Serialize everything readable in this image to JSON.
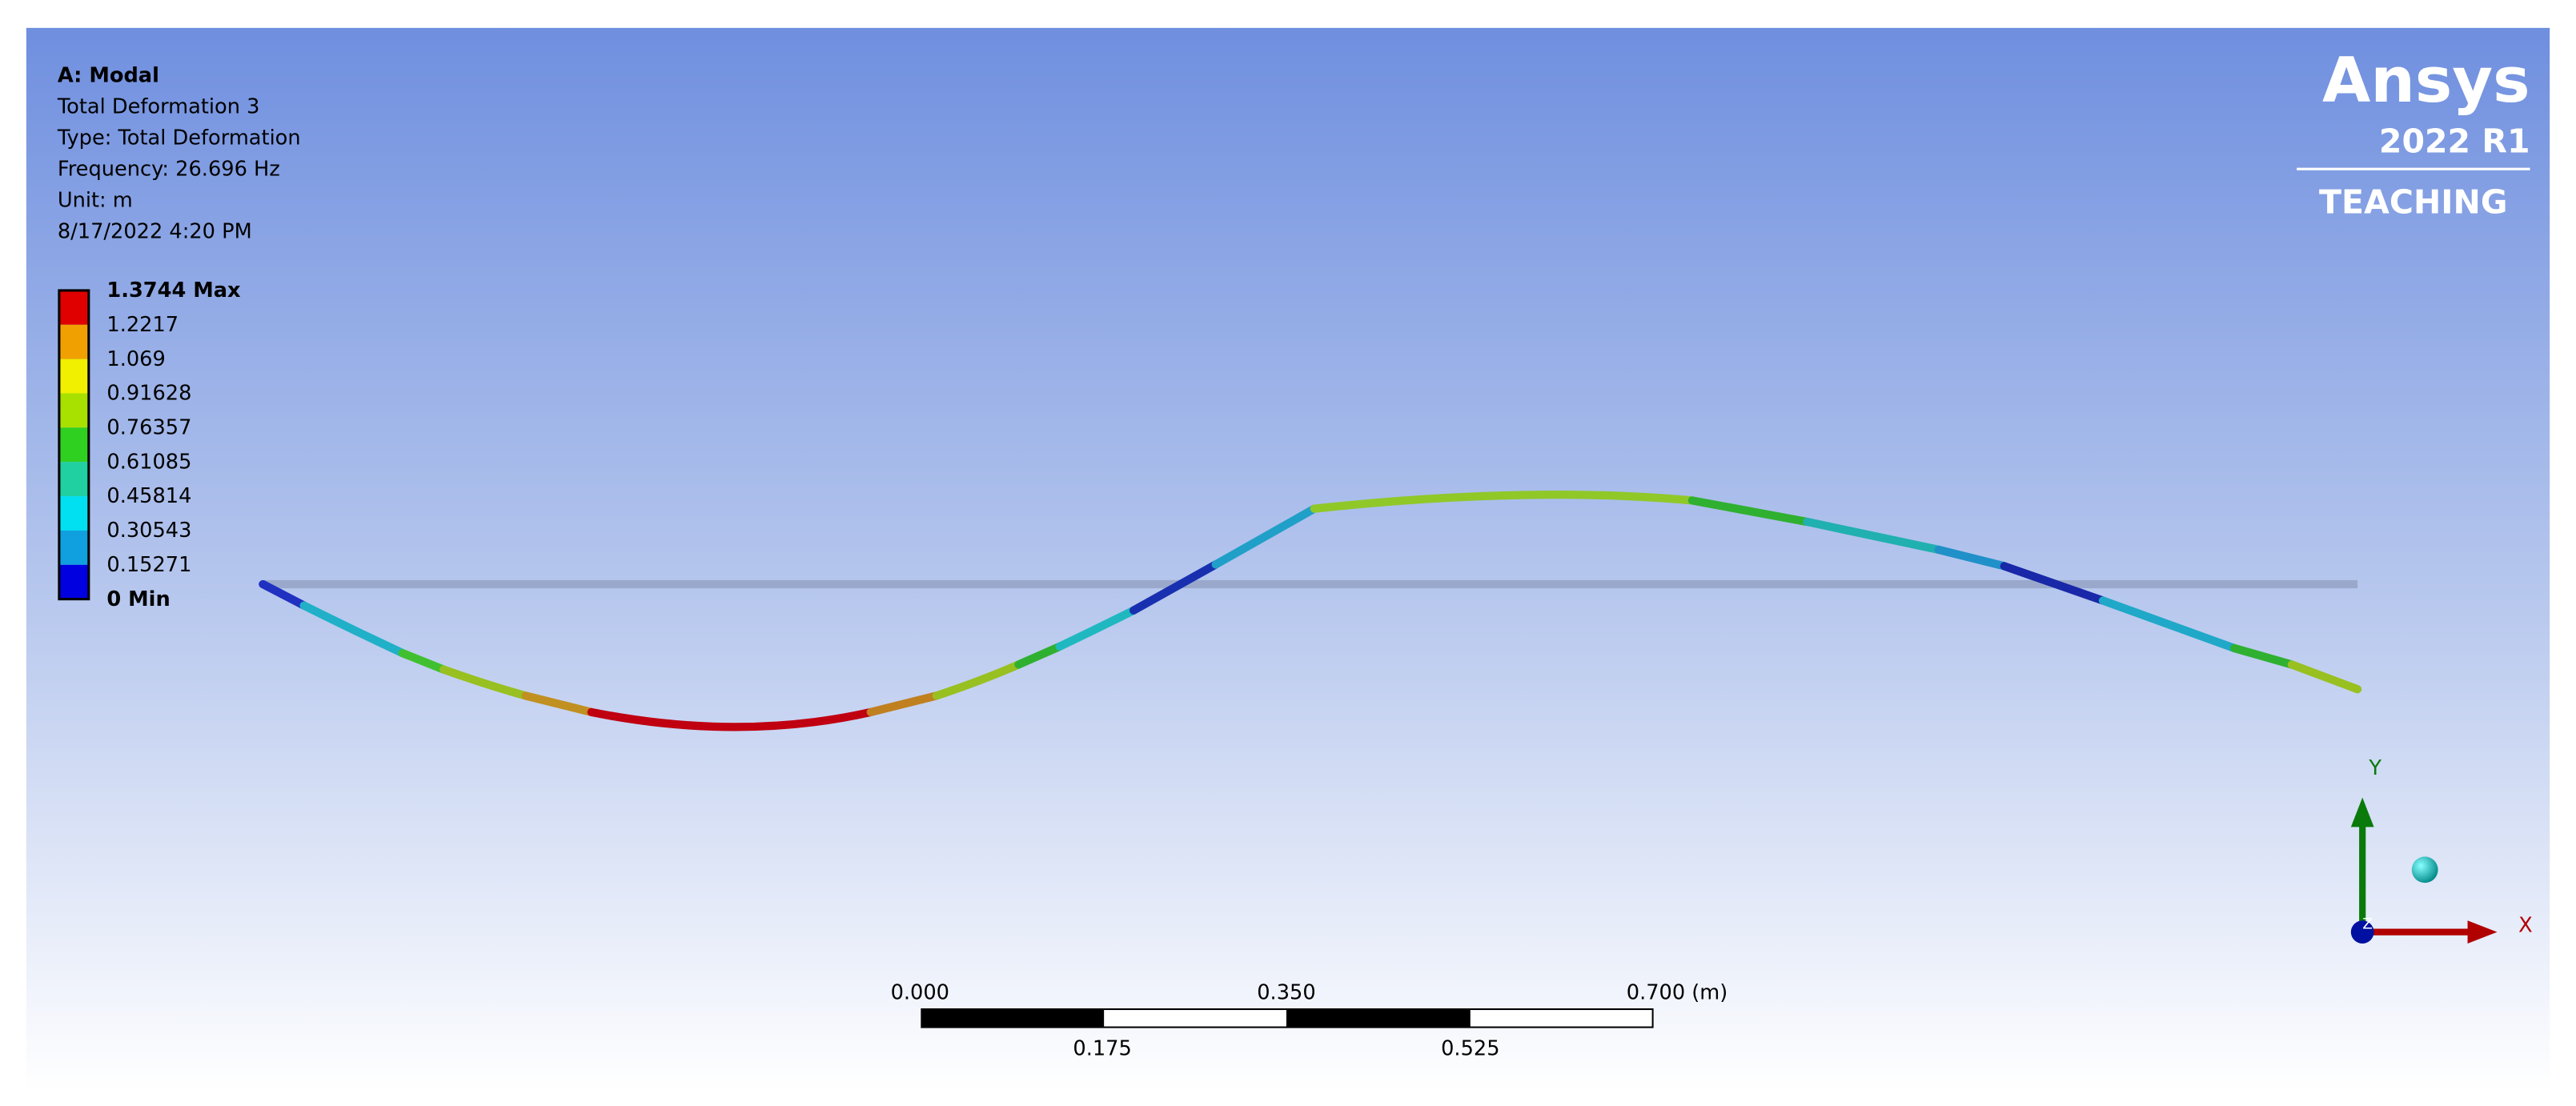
{
  "header": {
    "lines": [
      "A: Modal",
      "Total Deformation 3",
      "Type: Total Deformation",
      "Frequency: 26.696 Hz",
      "Unit: m",
      "8/17/2022 4:20 PM"
    ]
  },
  "legend": {
    "labels": [
      "1.3744 Max",
      "1.2217",
      "1.069",
      "0.91628",
      "0.76357",
      "0.61085",
      "0.45814",
      "0.30543",
      "0.15271",
      "0 Min"
    ],
    "colors": [
      "#e00000",
      "#f0a000",
      "#f0f000",
      "#a8e000",
      "#30d020",
      "#20d0a0",
      "#00e0f0",
      "#10a0e0",
      "#0000e0"
    ]
  },
  "logo": {
    "brand": "Ansys",
    "version": "2022 R1",
    "edition": "TEACHING"
  },
  "scale_bar": {
    "top_labels": [
      "0.000",
      "0.350",
      "0.700 (m)"
    ],
    "bottom_labels": [
      "0.175",
      "0.525"
    ]
  },
  "triad": {
    "x": "X",
    "y": "Y",
    "z": "Z"
  }
}
